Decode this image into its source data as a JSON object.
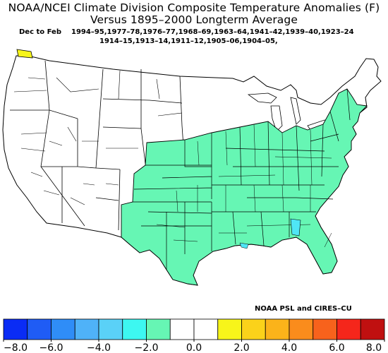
{
  "title": {
    "line1": "NOAA/NCEI Climate Division Composite Temperature Anomalies (F)",
    "line2": "Versus 1895–2000 Longterm Average"
  },
  "subtitle": {
    "season": "Dec to Feb",
    "years_line1": "1994–95,1977–78,1976–77,1968–69,1963–64,1941–42,1939–40,1923–24",
    "years_line2": "1914–15,1913–14,1911–12,1905–06,1904–05,"
  },
  "credit": "NOAA PSL and CIRES–CU",
  "colorbar": {
    "colors": [
      "#0a2cf5",
      "#1f5cf5",
      "#2f8df7",
      "#4fb2f8",
      "#5ad1f7",
      "#3df7f1",
      "#66f6b4",
      "#ffffff",
      "#ffffff",
      "#f7f51a",
      "#fbd21a",
      "#fbb31a",
      "#fa8c1c",
      "#f7621c",
      "#f5261b",
      "#c01010"
    ],
    "tick_labels": [
      "−8.0",
      "−6.0",
      "−4.0",
      "−2.0",
      "0.0",
      "2.0",
      "4.0",
      "6.0",
      "8.0"
    ],
    "range": [
      -8,
      8
    ]
  },
  "map": {
    "anomaly_fill": "#66f6b4",
    "warm_fill": "#f7f51a",
    "cool_spot_fill": "#4fe6f5",
    "outline": "#000000"
  }
}
